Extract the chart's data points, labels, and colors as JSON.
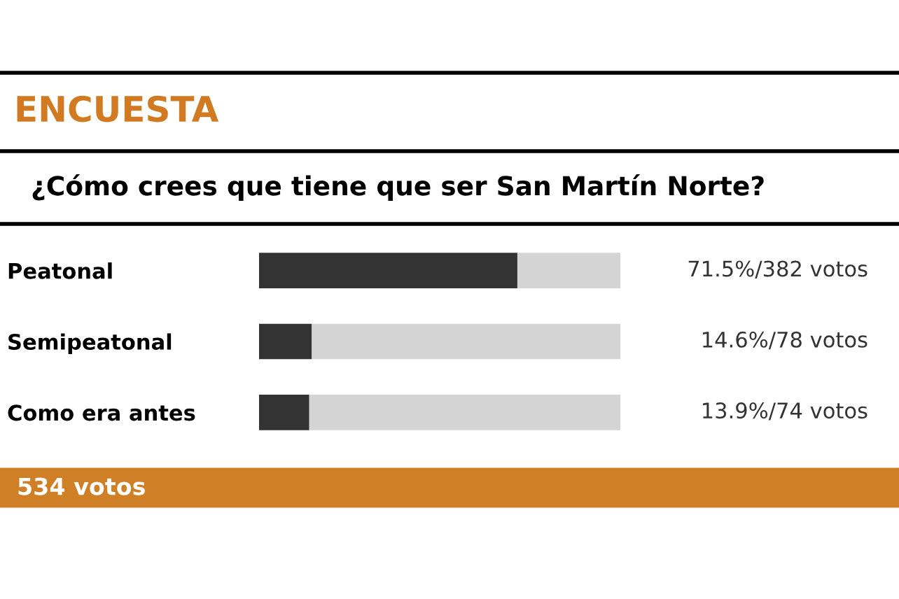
{
  "chart_data": {
    "type": "bar",
    "orientation": "horizontal",
    "stacked": true,
    "title": "ENCUESTA",
    "subtitle": "¿Cómo crees que tiene que ser San Martín Norte?",
    "categories": [
      "Peatonal",
      "Semipeatonal",
      "Como era antes"
    ],
    "series": [
      {
        "color": "#333333",
        "values": [
          71.5,
          14.6,
          13.9
        ],
        "value_labels": [
          "71.5%/382 votos",
          "14.6%/78 votos",
          "13.9%/74 votos"
        ]
      },
      {
        "color": "#d4d4d4",
        "values": [
          28.5,
          85.4,
          86.1
        ]
      }
    ],
    "xlim": [
      0,
      100
    ],
    "tick_labels": "y",
    "grid": false,
    "legend": false,
    "annotations": [
      "534 votos"
    ]
  }
}
